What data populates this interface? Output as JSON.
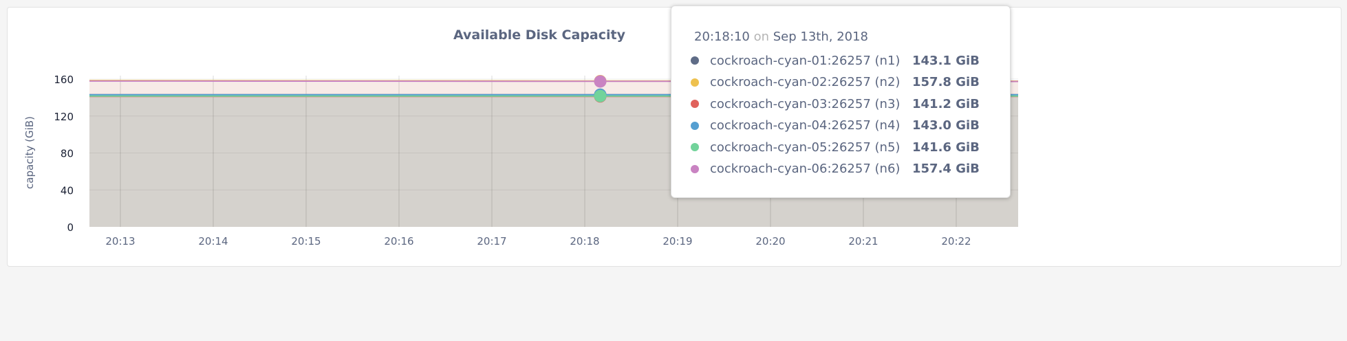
{
  "chart_data": {
    "type": "area",
    "title": "Available Disk Capacity",
    "ylabel": "capacity (GiB)",
    "xlabel": "",
    "ylim": [
      0,
      160
    ],
    "yticks": [
      0,
      40,
      80,
      120,
      160
    ],
    "xlim": [
      "20:12:40",
      "20:22:40"
    ],
    "xticks": [
      "20:13",
      "20:14",
      "20:15",
      "20:16",
      "20:17",
      "20:18",
      "20:19",
      "20:20",
      "20:21",
      "20:22"
    ],
    "grid": true,
    "series": [
      {
        "name": "cockroach-cyan-01:26257 (n1)",
        "color": "#5f6c87",
        "values": [
          143.1,
          143.1,
          143.1
        ]
      },
      {
        "name": "cockroach-cyan-02:26257 (n2)",
        "color": "#eec14f",
        "values": [
          158.4,
          158.0,
          157.8
        ]
      },
      {
        "name": "cockroach-cyan-03:26257 (n3)",
        "color": "#e0625c",
        "values": [
          141.2,
          141.2,
          141.2
        ]
      },
      {
        "name": "cockroach-cyan-04:26257 (n4)",
        "color": "#559fd1",
        "values": [
          143.0,
          143.0,
          143.0
        ]
      },
      {
        "name": "cockroach-cyan-05:26257 (n5)",
        "color": "#72d39b",
        "values": [
          141.6,
          141.6,
          141.6
        ]
      },
      {
        "name": "cockroach-cyan-06:26257 (n6)",
        "color": "#c983c2",
        "values": [
          157.9,
          157.6,
          157.4
        ]
      }
    ],
    "x": [
      "20:12:40",
      "20:17:40",
      "20:22:40"
    ],
    "hover_time": "20:18:10"
  },
  "tooltip": {
    "time": "20:18:10",
    "on": "on",
    "date": "Sep 13th, 2018",
    "rows": [
      {
        "name": "cockroach-cyan-01:26257 (n1)",
        "value": "143.1 GiB",
        "color": "#5f6c87"
      },
      {
        "name": "cockroach-cyan-02:26257 (n2)",
        "value": "157.8 GiB",
        "color": "#eec14f"
      },
      {
        "name": "cockroach-cyan-03:26257 (n3)",
        "value": "141.2 GiB",
        "color": "#e0625c"
      },
      {
        "name": "cockroach-cyan-04:26257 (n4)",
        "value": "143.0 GiB",
        "color": "#559fd1"
      },
      {
        "name": "cockroach-cyan-05:26257 (n5)",
        "value": "141.6 GiB",
        "color": "#72d39b"
      },
      {
        "name": "cockroach-cyan-06:26257 (n6)",
        "value": "157.4 GiB",
        "color": "#c983c2"
      }
    ]
  }
}
